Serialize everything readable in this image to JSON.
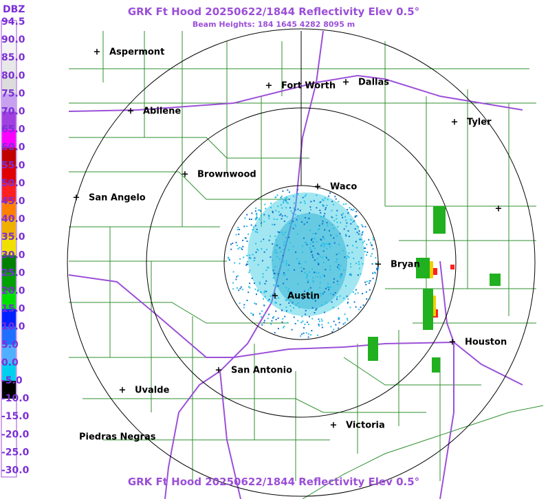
{
  "header": {
    "title": "GRK Ft Hood 20250622/1844 Reflectivity Elev 0.5°",
    "subtitle": "Beam Heights: 184 1645 4282 8095 m",
    "footer": "GRK Ft Hood 20250622/1844 Reflectivity Elev 0.5°"
  },
  "legend": {
    "title": "DBZ",
    "labels": [
      "94.5",
      "90.0",
      "85.0",
      "80.0",
      "75.0",
      "70.0",
      "65.0",
      "60.0",
      "55.0",
      "50.0",
      "45.0",
      "40.0",
      "35.0",
      "30.0",
      "25.0",
      "20.0",
      "15.0",
      "10.0",
      "5.0",
      "0.0",
      "-5.0",
      "-10.0",
      "-15.0",
      "-20.0",
      "-25.0",
      "-30.0"
    ],
    "colors": [
      "#ffffff",
      "#f4f4f4",
      "#e8e8e8",
      "#dcdcdc",
      "#c8a0f0",
      "#a040e0",
      "#ff00ff",
      "#c00000",
      "#e00000",
      "#ff2020",
      "#ff8000",
      "#f0b000",
      "#f0e000",
      "#008000",
      "#00a000",
      "#00e000",
      "#0020ff",
      "#2070ff",
      "#50b0ff",
      "#00d0f0",
      "#000000",
      "#ffffff",
      "#ffffff",
      "#ffffff",
      "#ffffff"
    ]
  },
  "cities": [
    {
      "name": "Aspermont"
    },
    {
      "name": "Fort Worth"
    },
    {
      "name": "Dallas"
    },
    {
      "name": "Abilene"
    },
    {
      "name": "Tyler"
    },
    {
      "name": "Brownwood"
    },
    {
      "name": "Waco"
    },
    {
      "name": "San Angelo"
    },
    {
      "name": "Bryan"
    },
    {
      "name": "Austin"
    },
    {
      "name": "Houston"
    },
    {
      "name": "San Antonio"
    },
    {
      "name": "Uvalde"
    },
    {
      "name": "Victoria"
    },
    {
      "name": "Piedras Negras"
    }
  ]
}
